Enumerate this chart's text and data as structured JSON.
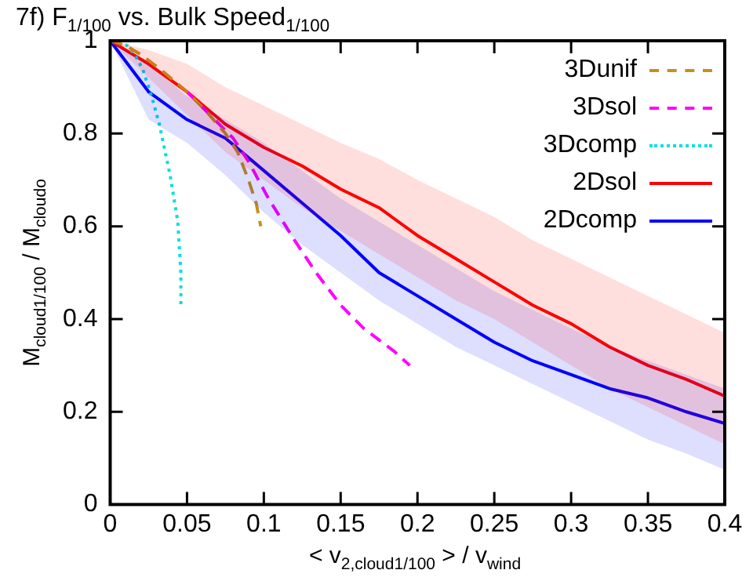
{
  "chart_data": {
    "type": "line",
    "title": "7f) F$_{1/100}$ vs. Bulk Speed$_{1/100}$",
    "xlabel": "< v$_{2,cloud}$$_{1/100}$ > / v$_{wind}$",
    "ylabel": "M$_{cloud}$$_{1/100}$ / M$_{cloud}$$_{o}$",
    "xlim": [
      0,
      0.4
    ],
    "ylim": [
      0,
      1
    ],
    "xticks": [
      0,
      0.05,
      0.1,
      0.15,
      0.2,
      0.25,
      0.3,
      0.35,
      0.4
    ],
    "yticks": [
      0,
      0.2,
      0.4,
      0.6,
      0.8,
      1
    ],
    "legend": "top right",
    "series": [
      {
        "name": "3Dunif",
        "color": "#c8901a",
        "line_style": "dashed",
        "x": [
          0,
          0.01,
          0.02,
          0.032,
          0.05,
          0.062,
          0.075,
          0.083,
          0.09,
          0.095,
          0.098
        ],
        "values": [
          1,
          0.99,
          0.97,
          0.94,
          0.89,
          0.85,
          0.8,
          0.76,
          0.7,
          0.65,
          0.6
        ]
      },
      {
        "name": "3Dsol",
        "color": "#ff00ff",
        "line_style": "dashed",
        "x": [
          0.05,
          0.065,
          0.08,
          0.09,
          0.103,
          0.12,
          0.134,
          0.15,
          0.165,
          0.175,
          0.185,
          0.195
        ],
        "values": [
          0.89,
          0.84,
          0.79,
          0.74,
          0.66,
          0.57,
          0.5,
          0.43,
          0.38,
          0.355,
          0.33,
          0.3
        ]
      },
      {
        "name": "3Dcomp",
        "color": "#00e0e0",
        "line_style": "dotted",
        "x": [
          0,
          0.011,
          0.016,
          0.021,
          0.027,
          0.032,
          0.039,
          0.044,
          0.046,
          0.046
        ],
        "values": [
          1,
          0.99,
          0.97,
          0.94,
          0.88,
          0.82,
          0.71,
          0.61,
          0.5,
          0.43
        ]
      },
      {
        "name": "2Dsol",
        "color": "#ff0000",
        "line_style": "solid",
        "x": [
          0,
          0.025,
          0.05,
          0.075,
          0.1,
          0.125,
          0.15,
          0.175,
          0.2,
          0.225,
          0.25,
          0.275,
          0.3,
          0.325,
          0.35,
          0.375,
          0.4
        ],
        "values": [
          1,
          0.95,
          0.89,
          0.82,
          0.77,
          0.73,
          0.68,
          0.64,
          0.58,
          0.53,
          0.48,
          0.43,
          0.39,
          0.34,
          0.3,
          0.27,
          0.234
        ],
        "upper": [
          1,
          0.98,
          0.95,
          0.9,
          0.86,
          0.82,
          0.78,
          0.745,
          0.7,
          0.66,
          0.62,
          0.57,
          0.53,
          0.49,
          0.45,
          0.41,
          0.37
        ],
        "lower": [
          1,
          0.92,
          0.84,
          0.76,
          0.7,
          0.64,
          0.59,
          0.54,
          0.49,
          0.44,
          0.4,
          0.35,
          0.3,
          0.25,
          0.21,
          0.17,
          0.13
        ]
      },
      {
        "name": "2Dcomp",
        "color": "#0000ff",
        "line_style": "solid",
        "x": [
          0,
          0.025,
          0.05,
          0.075,
          0.1,
          0.125,
          0.15,
          0.175,
          0.2,
          0.225,
          0.25,
          0.275,
          0.3,
          0.325,
          0.35,
          0.375,
          0.4
        ],
        "values": [
          1,
          0.89,
          0.83,
          0.79,
          0.72,
          0.65,
          0.58,
          0.5,
          0.45,
          0.4,
          0.35,
          0.31,
          0.28,
          0.25,
          0.23,
          0.2,
          0.175
        ],
        "upper": [
          1,
          0.95,
          0.88,
          0.83,
          0.78,
          0.72,
          0.66,
          0.61,
          0.56,
          0.51,
          0.46,
          0.42,
          0.38,
          0.34,
          0.31,
          0.28,
          0.25
        ],
        "lower": [
          1,
          0.83,
          0.78,
          0.71,
          0.63,
          0.56,
          0.5,
          0.44,
          0.39,
          0.34,
          0.3,
          0.26,
          0.22,
          0.18,
          0.14,
          0.11,
          0.075
        ]
      }
    ]
  }
}
